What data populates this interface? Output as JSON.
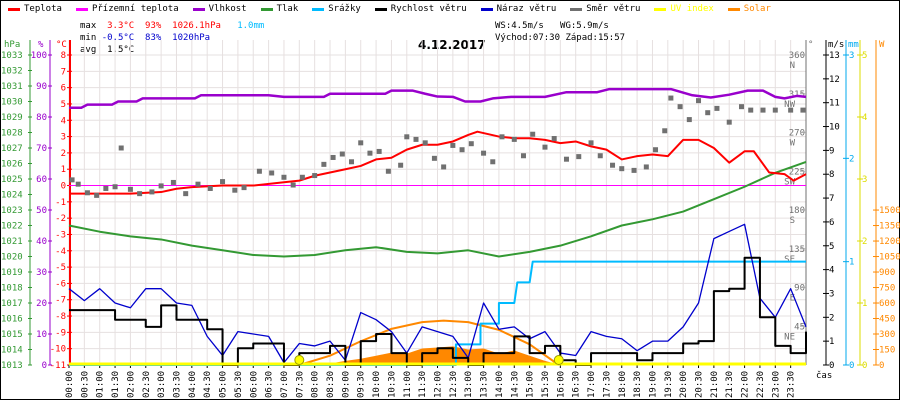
{
  "legend": [
    {
      "label": "Teplota",
      "color": "#ff0000"
    },
    {
      "label": "Přízemní teplota",
      "color": "#ff00ff"
    },
    {
      "label": "Vlhkost",
      "color": "#9900cc"
    },
    {
      "label": "Tlak",
      "color": "#339933"
    },
    {
      "label": "Srážky",
      "color": "#00bbff"
    },
    {
      "label": "Rychlost větru",
      "color": "#000000"
    },
    {
      "label": "Náraz větru",
      "color": "#0000cc"
    },
    {
      "label": "Směr větru",
      "color": "#707070"
    },
    {
      "label": "UV index",
      "color": "#ffff00"
    },
    {
      "label": "Solar",
      "color": "#ff8800"
    }
  ],
  "stats": {
    "max_label": "max",
    "max_temp": "3.3°C",
    "max_hum": "93%",
    "max_press": "1026.1hPa",
    "max_rain": "1.0mm",
    "min_label": "min",
    "min_temp": "-0.5°C",
    "min_hum": "83%",
    "min_press": "1020hPa",
    "avg_label": "avg",
    "avg_temp": "1.5°C",
    "ws": "WS:4.5m/s",
    "wg": "WG:5.9m/s",
    "sunrise": "Východ:07:30",
    "sunset": "Západ:15:57"
  },
  "chart_data": {
    "type": "line",
    "title": "4.12.2017",
    "xlabel": "čas",
    "x_ticks": [
      "00:00",
      "00:30",
      "01:00",
      "01:30",
      "02:00",
      "02:30",
      "03:00",
      "03:30",
      "04:00",
      "04:30",
      "05:00",
      "05:30",
      "06:00",
      "06:30",
      "07:00",
      "07:30",
      "08:00",
      "08:30",
      "09:00",
      "09:30",
      "10:00",
      "10:30",
      "11:00",
      "11:30",
      "12:00",
      "12:30",
      "13:00",
      "13:30",
      "14:00",
      "14:30",
      "15:00",
      "15:30",
      "16:00",
      "16:30",
      "17:00",
      "17:30",
      "18:00",
      "18:30",
      "19:00",
      "19:30",
      "20:00",
      "20:30",
      "21:00",
      "21:30",
      "22:00",
      "22:30",
      "23:00",
      "23:30"
    ],
    "axes": {
      "pressure": {
        "unit": "hPa",
        "range": [
          1013,
          1033
        ],
        "color": "#339933",
        "ticks": [
          "1013",
          "1014",
          "1015",
          "1016",
          "1017",
          "1018",
          "1019",
          "1020",
          "1021",
          "1022",
          "1023",
          "1024",
          "1025",
          "1026",
          "1027",
          "1028",
          "1029",
          "1030",
          "1031",
          "1032",
          "1033"
        ]
      },
      "humidity": {
        "unit": "%",
        "range": [
          0,
          100
        ],
        "color": "#9900cc",
        "ticks": [
          "0",
          "10",
          "20",
          "30",
          "40",
          "50",
          "60",
          "70",
          "80",
          "90",
          "100"
        ]
      },
      "temperature": {
        "unit": "°C",
        "range": [
          -11,
          8
        ],
        "color": "#ff0000",
        "ticks": [
          "-11",
          "-10",
          "-9",
          "-8",
          "-7",
          "-6",
          "-5",
          "-4",
          "-3",
          "-2",
          "-1",
          "0",
          "1",
          "2",
          "3",
          "4",
          "5",
          "6",
          "7",
          "8"
        ]
      },
      "direction": {
        "unit": "°",
        "range": [
          0,
          360
        ],
        "color": "#707070",
        "ticks": [
          {
            "v": "45",
            "d": "NE"
          },
          {
            "v": "90",
            "d": "E"
          },
          {
            "v": "135",
            "d": "SE"
          },
          {
            "v": "180",
            "d": "S"
          },
          {
            "v": "225",
            "d": "SW"
          },
          {
            "v": "270",
            "d": "W"
          },
          {
            "v": "315",
            "d": "NW"
          },
          {
            "v": "360",
            "d": "N"
          }
        ]
      },
      "wind": {
        "unit": "m/s",
        "range": [
          0,
          13
        ],
        "color": "#000000",
        "ticks": [
          "0",
          "1",
          "2",
          "3",
          "4",
          "5",
          "6",
          "7",
          "8",
          "9",
          "10",
          "11",
          "12",
          "13"
        ]
      },
      "rain": {
        "unit": "mm",
        "range": [
          0,
          3
        ],
        "color": "#00aaee",
        "ticks": [
          "0",
          "1",
          "2",
          "3"
        ]
      },
      "uv": {
        "unit": "",
        "range": [
          0,
          5
        ],
        "color": "#dddd00",
        "ticks": [
          "0",
          "1",
          "2",
          "3",
          "4",
          "5"
        ]
      },
      "solar": {
        "unit": "W",
        "range": [
          0,
          1500
        ],
        "color": "#ff8800",
        "ticks": [
          "0",
          "150",
          "300",
          "450",
          "600",
          "750",
          "900",
          "1050",
          "1200",
          "1350",
          "1500"
        ]
      }
    },
    "series": {
      "temperature": [
        [
          0,
          -0.5
        ],
        [
          1,
          -0.5
        ],
        [
          2,
          -0.5
        ],
        [
          3,
          -0.4
        ],
        [
          3.5,
          -0.2
        ],
        [
          4,
          -0.1
        ],
        [
          5,
          0.0
        ],
        [
          6,
          0.0
        ],
        [
          7,
          0.2
        ],
        [
          7.5,
          0.3
        ],
        [
          8,
          0.6
        ],
        [
          8.5,
          0.8
        ],
        [
          9,
          1.0
        ],
        [
          9.5,
          1.2
        ],
        [
          10,
          1.6
        ],
        [
          10.5,
          1.7
        ],
        [
          11,
          2.2
        ],
        [
          11.5,
          2.5
        ],
        [
          12,
          2.5
        ],
        [
          12.5,
          2.7
        ],
        [
          13,
          3.1
        ],
        [
          13.3,
          3.3
        ],
        [
          14,
          3.0
        ],
        [
          14.5,
          2.9
        ],
        [
          15,
          2.9
        ],
        [
          15.5,
          2.8
        ],
        [
          16,
          2.6
        ],
        [
          16.5,
          2.7
        ],
        [
          17,
          2.4
        ],
        [
          17.5,
          2.2
        ],
        [
          18,
          1.6
        ],
        [
          18.5,
          1.8
        ],
        [
          19,
          1.9
        ],
        [
          19.5,
          1.8
        ],
        [
          20,
          2.8
        ],
        [
          20.5,
          2.8
        ],
        [
          21,
          2.3
        ],
        [
          21.5,
          1.4
        ],
        [
          22,
          2.1
        ],
        [
          22.3,
          2.1
        ],
        [
          22.8,
          0.8
        ],
        [
          23.3,
          0.7
        ],
        [
          23.6,
          0.3
        ],
        [
          24,
          0.7
        ]
      ],
      "ground_temperature": [
        [
          0,
          0
        ],
        [
          24,
          0
        ]
      ],
      "humidity": [
        [
          0,
          83
        ],
        [
          0.4,
          83
        ],
        [
          0.6,
          84
        ],
        [
          1.4,
          84
        ],
        [
          1.6,
          85
        ],
        [
          2.2,
          85
        ],
        [
          2.4,
          86
        ],
        [
          4.1,
          86
        ],
        [
          4.3,
          87
        ],
        [
          6.5,
          87
        ],
        [
          7,
          86.5
        ],
        [
          8.3,
          86.5
        ],
        [
          8.5,
          87.5
        ],
        [
          9.2,
          87.5
        ],
        [
          10.3,
          87.5
        ],
        [
          10.5,
          88.5
        ],
        [
          11.2,
          88.5
        ],
        [
          11.6,
          87.5
        ],
        [
          12,
          86.6
        ],
        [
          12.5,
          86.5
        ],
        [
          12.9,
          85
        ],
        [
          13.4,
          85
        ],
        [
          13.8,
          86
        ],
        [
          14.4,
          86.5
        ],
        [
          15.5,
          86.5
        ],
        [
          16.2,
          88
        ],
        [
          17.2,
          88
        ],
        [
          17.6,
          89
        ],
        [
          18.2,
          89
        ],
        [
          19.6,
          89
        ],
        [
          20.3,
          87
        ],
        [
          20.9,
          86.3
        ],
        [
          21.5,
          87.2
        ],
        [
          22.1,
          88.5
        ],
        [
          22.6,
          88.5
        ],
        [
          23,
          86.5
        ],
        [
          23.3,
          86
        ],
        [
          23.7,
          86.8
        ],
        [
          24,
          86.5
        ]
      ],
      "pressure": [
        [
          0,
          1022.0
        ],
        [
          1,
          1021.6
        ],
        [
          2,
          1021.3
        ],
        [
          3,
          1021.1
        ],
        [
          4,
          1020.7
        ],
        [
          5,
          1020.4
        ],
        [
          6,
          1020.1
        ],
        [
          7,
          1020.0
        ],
        [
          8,
          1020.1
        ],
        [
          9,
          1020.4
        ],
        [
          10,
          1020.6
        ],
        [
          11,
          1020.3
        ],
        [
          12,
          1020.2
        ],
        [
          13,
          1020.4
        ],
        [
          14,
          1020.0
        ],
        [
          15,
          1020.3
        ],
        [
          16,
          1020.7
        ],
        [
          17,
          1021.3
        ],
        [
          18,
          1022.0
        ],
        [
          19,
          1022.4
        ],
        [
          20,
          1022.9
        ],
        [
          21,
          1023.7
        ],
        [
          22,
          1024.5
        ],
        [
          23,
          1025.4
        ],
        [
          24,
          1026.1
        ]
      ],
      "rain_cumulative": [
        [
          0,
          0
        ],
        [
          12.6,
          0
        ],
        [
          12.6,
          0.2
        ],
        [
          13.4,
          0.2
        ],
        [
          13.4,
          0.4
        ],
        [
          14.0,
          0.4
        ],
        [
          14.0,
          0.6
        ],
        [
          14.5,
          0.6
        ],
        [
          14.6,
          0.8
        ],
        [
          15.0,
          0.8
        ],
        [
          15.1,
          1.0
        ],
        [
          24,
          1.0
        ]
      ],
      "wind_speed": [
        2.3,
        2.3,
        2.3,
        1.9,
        1.9,
        1.6,
        2.5,
        1.9,
        1.9,
        1.5,
        0,
        0.7,
        0.9,
        0.9,
        0,
        0.5,
        0.5,
        0.8,
        0,
        1.0,
        1.3,
        0.5,
        0,
        0.5,
        0.7,
        0.3,
        0,
        0.5,
        0.5,
        1.2,
        0.5,
        0.8,
        0.2,
        0,
        0.5,
        0.5,
        0.5,
        0.2,
        0.5,
        0.5,
        0.9,
        1.0,
        3.1,
        3.2,
        4.5,
        2.0,
        0.8,
        0.5,
        1.4
      ],
      "wind_gust": [
        3.2,
        2.7,
        3.2,
        2.6,
        2.4,
        3.2,
        3.2,
        2.6,
        2.5,
        1.2,
        0.4,
        1.4,
        1.3,
        1.2,
        0.1,
        0.9,
        0.8,
        1.0,
        0.2,
        2.2,
        1.9,
        1.4,
        0.5,
        1.6,
        1.4,
        1.2,
        0.3,
        2.6,
        1.5,
        1.6,
        1.1,
        1.4,
        0.5,
        0.4,
        1.4,
        1.2,
        1.1,
        0.6,
        1.0,
        1.0,
        1.6,
        2.6,
        5.3,
        5.6,
        5.9,
        2.8,
        2.0,
        3.2,
        1.6
      ],
      "wind_direction": [
        [
          0.1,
          215
        ],
        [
          0.3,
          210
        ],
        [
          0.6,
          200
        ],
        [
          0.9,
          197
        ],
        [
          1.2,
          205
        ],
        [
          1.5,
          207
        ],
        [
          1.7,
          252
        ],
        [
          2.0,
          204
        ],
        [
          2.3,
          199
        ],
        [
          2.7,
          201
        ],
        [
          3.0,
          208
        ],
        [
          3.4,
          212
        ],
        [
          3.8,
          199
        ],
        [
          4.2,
          210
        ],
        [
          4.6,
          205
        ],
        [
          5.0,
          213
        ],
        [
          5.4,
          203
        ],
        [
          5.7,
          206
        ],
        [
          6.2,
          225
        ],
        [
          6.6,
          223
        ],
        [
          7.0,
          218
        ],
        [
          7.3,
          209
        ],
        [
          7.6,
          218
        ],
        [
          8.0,
          220
        ],
        [
          8.3,
          233
        ],
        [
          8.6,
          241
        ],
        [
          8.9,
          245
        ],
        [
          9.2,
          236
        ],
        [
          9.5,
          258
        ],
        [
          9.8,
          246
        ],
        [
          10.1,
          248
        ],
        [
          10.4,
          225
        ],
        [
          10.8,
          232
        ],
        [
          11.0,
          265
        ],
        [
          11.3,
          262
        ],
        [
          11.6,
          258
        ],
        [
          11.9,
          240
        ],
        [
          12.2,
          230
        ],
        [
          12.5,
          255
        ],
        [
          12.8,
          250
        ],
        [
          13.1,
          257
        ],
        [
          13.5,
          246
        ],
        [
          13.8,
          236
        ],
        [
          14.1,
          265
        ],
        [
          14.5,
          262
        ],
        [
          14.8,
          243
        ],
        [
          15.1,
          268
        ],
        [
          15.5,
          253
        ],
        [
          15.8,
          263
        ],
        [
          16.2,
          239
        ],
        [
          16.6,
          242
        ],
        [
          17.0,
          258
        ],
        [
          17.3,
          243
        ],
        [
          17.7,
          232
        ],
        [
          18.0,
          228
        ],
        [
          18.4,
          226
        ],
        [
          18.8,
          230
        ],
        [
          19.1,
          250
        ],
        [
          19.4,
          272
        ],
        [
          19.6,
          310
        ],
        [
          19.9,
          300
        ],
        [
          20.2,
          285
        ],
        [
          20.5,
          307
        ],
        [
          20.8,
          293
        ],
        [
          21.1,
          298
        ],
        [
          21.5,
          282
        ],
        [
          21.9,
          300
        ],
        [
          22.2,
          296
        ],
        [
          22.6,
          296
        ],
        [
          23.0,
          296
        ],
        [
          23.5,
          296
        ],
        [
          23.9,
          296
        ]
      ],
      "solar_theoretical": [
        [
          7.5,
          0
        ],
        [
          8.5,
          90
        ],
        [
          9.5,
          230
        ],
        [
          10.5,
          350
        ],
        [
          11.5,
          415
        ],
        [
          12.2,
          429
        ],
        [
          13,
          415
        ],
        [
          14,
          340
        ],
        [
          15,
          200
        ],
        [
          15.95,
          0
        ]
      ],
      "solar_measured": [
        [
          7.8,
          0
        ],
        [
          8.5,
          15
        ],
        [
          9,
          40
        ],
        [
          9.5,
          60
        ],
        [
          10,
          90
        ],
        [
          10.5,
          120
        ],
        [
          11,
          110
        ],
        [
          11.5,
          160
        ],
        [
          12,
          170
        ],
        [
          12.5,
          180
        ],
        [
          13,
          150
        ],
        [
          13.5,
          160
        ],
        [
          14,
          110
        ],
        [
          14.5,
          140
        ],
        [
          15,
          90
        ],
        [
          15.5,
          40
        ],
        [
          16,
          0
        ]
      ],
      "uv": [
        [
          0,
          0
        ],
        [
          24,
          0
        ]
      ]
    },
    "sun_markers": [
      "07:30",
      "15:57"
    ]
  }
}
